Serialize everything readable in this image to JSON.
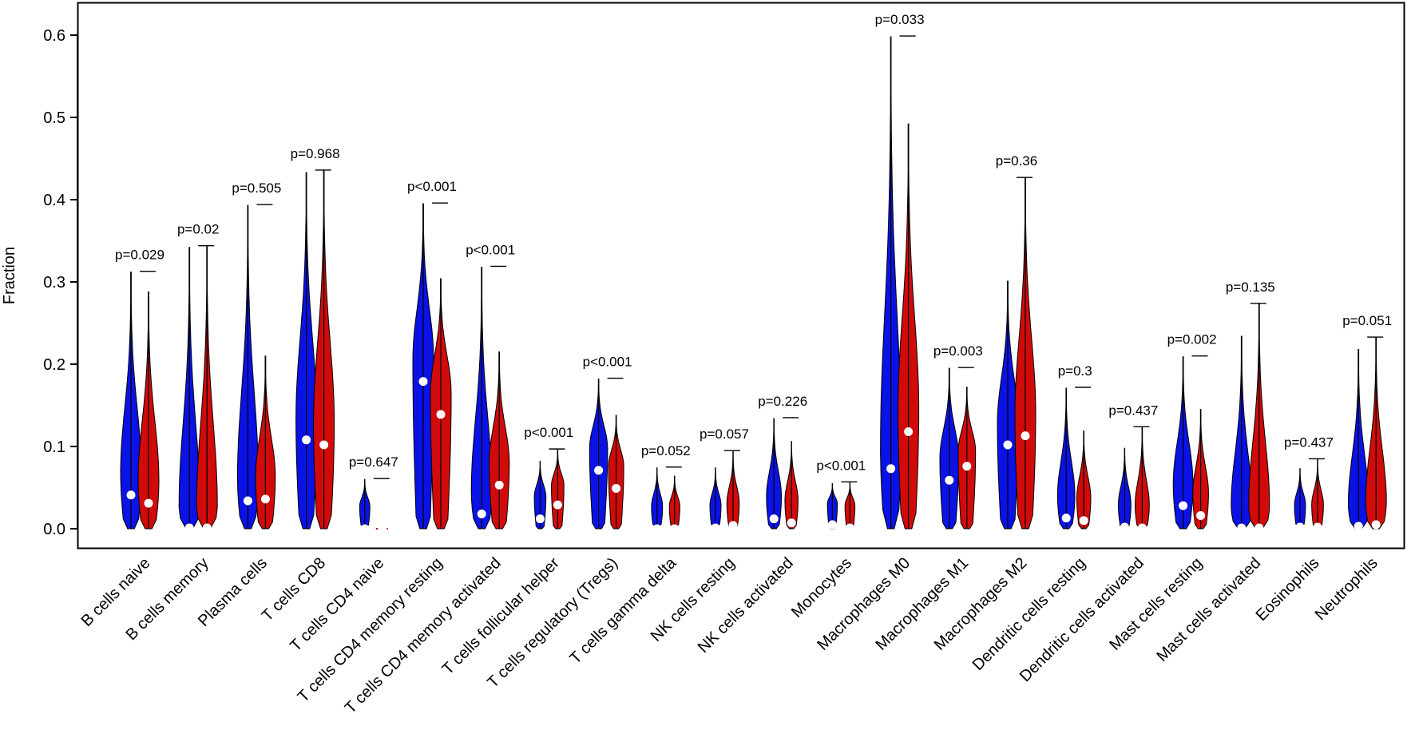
{
  "chart_data": {
    "type": "violin",
    "ylabel": "Fraction",
    "xlabel": "",
    "ylim": [
      0,
      0.62
    ],
    "yticks": [
      "0.0",
      "0.1",
      "0.2",
      "0.3",
      "0.4",
      "0.5",
      "0.6"
    ],
    "grid": false,
    "legend": "none",
    "colors": {
      "group1": "#0a12e6",
      "group2": "#d10a0a",
      "median_dot": "#ffffff"
    },
    "categories": [
      {
        "label": "B cells naive",
        "p": "p=0.029",
        "g1": {
          "max": 0.312,
          "median": 0.041
        },
        "g2": {
          "max": 0.288,
          "median": 0.031
        }
      },
      {
        "label": "B cells memory",
        "p": "p=0.02",
        "g1": {
          "max": 0.342,
          "median": 0.001
        },
        "g2": {
          "max": 0.343,
          "median": 0.001
        }
      },
      {
        "label": "Plasma cells",
        "p": "p=0.505",
        "g1": {
          "max": 0.393,
          "median": 0.034
        },
        "g2": {
          "max": 0.21,
          "median": 0.036
        }
      },
      {
        "label": "T cells CD8",
        "p": "p=0.968",
        "g1": {
          "max": 0.433,
          "median": 0.108
        },
        "g2": {
          "max": 0.435,
          "median": 0.102
        }
      },
      {
        "label": "T cells CD4 naive",
        "p": "p=0.647",
        "g1": {
          "max": 0.06,
          "median": 0.0
        },
        "g2": {
          "max": 0.0,
          "median": 0.0
        }
      },
      {
        "label": "T cells CD4 memory resting",
        "p": "p<0.001",
        "g1": {
          "max": 0.395,
          "median": 0.179
        },
        "g2": {
          "max": 0.304,
          "median": 0.139
        }
      },
      {
        "label": "T cells CD4 memory activated",
        "p": "p<0.001",
        "g1": {
          "max": 0.318,
          "median": 0.018
        },
        "g2": {
          "max": 0.215,
          "median": 0.053
        }
      },
      {
        "label": "T cells follicular helper",
        "p": "p<0.001",
        "g1": {
          "max": 0.082,
          "median": 0.012
        },
        "g2": {
          "max": 0.096,
          "median": 0.029
        }
      },
      {
        "label": "T cells regulatory (Tregs)",
        "p": "p<0.001",
        "g1": {
          "max": 0.182,
          "median": 0.071
        },
        "g2": {
          "max": 0.138,
          "median": 0.049
        }
      },
      {
        "label": "T cells gamma delta",
        "p": "p=0.052",
        "g1": {
          "max": 0.074,
          "median": 0.0
        },
        "g2": {
          "max": 0.064,
          "median": 0.0
        }
      },
      {
        "label": "NK cells resting",
        "p": "p=0.057",
        "g1": {
          "max": 0.074,
          "median": 0.001
        },
        "g2": {
          "max": 0.094,
          "median": 0.004
        }
      },
      {
        "label": "NK cells activated",
        "p": "p=0.226",
        "g1": {
          "max": 0.134,
          "median": 0.012
        },
        "g2": {
          "max": 0.106,
          "median": 0.007
        }
      },
      {
        "label": "Monocytes",
        "p": "p<0.001",
        "g1": {
          "max": 0.055,
          "median": 0.005
        },
        "g2": {
          "max": 0.056,
          "median": 0.001
        }
      },
      {
        "label": "Macrophages M0",
        "p": "p=0.033",
        "g1": {
          "max": 0.598,
          "median": 0.073
        },
        "g2": {
          "max": 0.492,
          "median": 0.118
        }
      },
      {
        "label": "Macrophages M1",
        "p": "p=0.003",
        "g1": {
          "max": 0.195,
          "median": 0.059
        },
        "g2": {
          "max": 0.172,
          "median": 0.076
        }
      },
      {
        "label": "Macrophages M2",
        "p": "p=0.36",
        "g1": {
          "max": 0.301,
          "median": 0.102
        },
        "g2": {
          "max": 0.426,
          "median": 0.113
        }
      },
      {
        "label": "Dendritic cells resting",
        "p": "p=0.3",
        "g1": {
          "max": 0.171,
          "median": 0.013
        },
        "g2": {
          "max": 0.119,
          "median": 0.01
        }
      },
      {
        "label": "Dendritic cells activated",
        "p": "p=0.437",
        "g1": {
          "max": 0.098,
          "median": 0.002
        },
        "g2": {
          "max": 0.123,
          "median": 0.001
        }
      },
      {
        "label": "Mast cells resting",
        "p": "p=0.002",
        "g1": {
          "max": 0.209,
          "median": 0.028
        },
        "g2": {
          "max": 0.145,
          "median": 0.016
        }
      },
      {
        "label": "Mast cells activated",
        "p": "p=0.135",
        "g1": {
          "max": 0.234,
          "median": 0.001
        },
        "g2": {
          "max": 0.273,
          "median": 0.001
        }
      },
      {
        "label": "Eosinophils",
        "p": "p=0.437",
        "g1": {
          "max": 0.073,
          "median": 0.002
        },
        "g2": {
          "max": 0.084,
          "median": 0.002
        }
      },
      {
        "label": "Neutrophils",
        "p": "p=0.051",
        "g1": {
          "max": 0.218,
          "median": 0.003
        },
        "g2": {
          "max": 0.232,
          "median": 0.005
        }
      }
    ]
  }
}
